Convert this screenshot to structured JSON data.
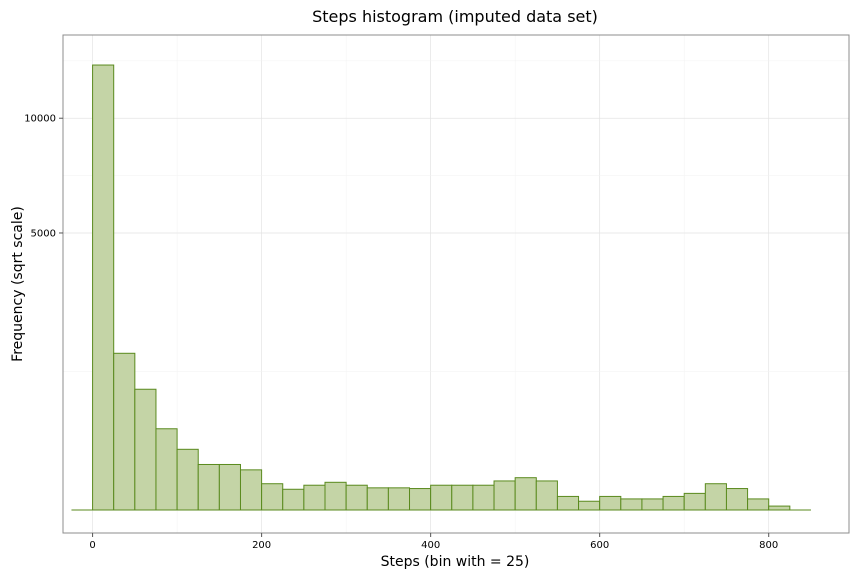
{
  "chart_data": {
    "type": "bar",
    "title": "Steps histogram (imputed data set)",
    "xlabel": "Steps (bin with = 25)",
    "ylabel": "Frequency (sqrt scale)",
    "y_scale": "sqrt",
    "bin_width": 25,
    "xlim": [
      -35,
      895
    ],
    "ylim": [
      0,
      14700
    ],
    "x_ticks": [
      0,
      200,
      400,
      600,
      800
    ],
    "y_ticks": [
      5000,
      10000
    ],
    "grid": true,
    "bar_fill": "#c4d4a6",
    "bar_stroke": "#5a8a1e",
    "bins": [
      {
        "x0": -25,
        "x1": 0,
        "count": 0
      },
      {
        "x0": 0,
        "x1": 25,
        "count": 12900
      },
      {
        "x0": 25,
        "x1": 50,
        "count": 1600
      },
      {
        "x0": 50,
        "x1": 75,
        "count": 950
      },
      {
        "x0": 75,
        "x1": 100,
        "count": 430
      },
      {
        "x0": 100,
        "x1": 125,
        "count": 240
      },
      {
        "x0": 125,
        "x1": 150,
        "count": 135
      },
      {
        "x0": 150,
        "x1": 175,
        "count": 135
      },
      {
        "x0": 175,
        "x1": 200,
        "count": 105
      },
      {
        "x0": 200,
        "x1": 225,
        "count": 45
      },
      {
        "x0": 225,
        "x1": 250,
        "count": 28
      },
      {
        "x0": 250,
        "x1": 275,
        "count": 40
      },
      {
        "x0": 275,
        "x1": 300,
        "count": 50
      },
      {
        "x0": 300,
        "x1": 325,
        "count": 40
      },
      {
        "x0": 325,
        "x1": 350,
        "count": 32
      },
      {
        "x0": 350,
        "x1": 375,
        "count": 32
      },
      {
        "x0": 375,
        "x1": 400,
        "count": 30
      },
      {
        "x0": 400,
        "x1": 425,
        "count": 40
      },
      {
        "x0": 425,
        "x1": 450,
        "count": 40
      },
      {
        "x0": 450,
        "x1": 475,
        "count": 40
      },
      {
        "x0": 475,
        "x1": 500,
        "count": 55
      },
      {
        "x0": 500,
        "x1": 525,
        "count": 68
      },
      {
        "x0": 525,
        "x1": 550,
        "count": 55
      },
      {
        "x0": 550,
        "x1": 575,
        "count": 12
      },
      {
        "x0": 575,
        "x1": 600,
        "count": 5
      },
      {
        "x0": 600,
        "x1": 625,
        "count": 12
      },
      {
        "x0": 625,
        "x1": 650,
        "count": 8
      },
      {
        "x0": 650,
        "x1": 675,
        "count": 8
      },
      {
        "x0": 675,
        "x1": 700,
        "count": 12
      },
      {
        "x0": 700,
        "x1": 725,
        "count": 18
      },
      {
        "x0": 725,
        "x1": 750,
        "count": 45
      },
      {
        "x0": 750,
        "x1": 775,
        "count": 30
      },
      {
        "x0": 775,
        "x1": 800,
        "count": 8
      },
      {
        "x0": 800,
        "x1": 825,
        "count": 1
      },
      {
        "x0": 825,
        "x1": 850,
        "count": 0
      }
    ]
  }
}
